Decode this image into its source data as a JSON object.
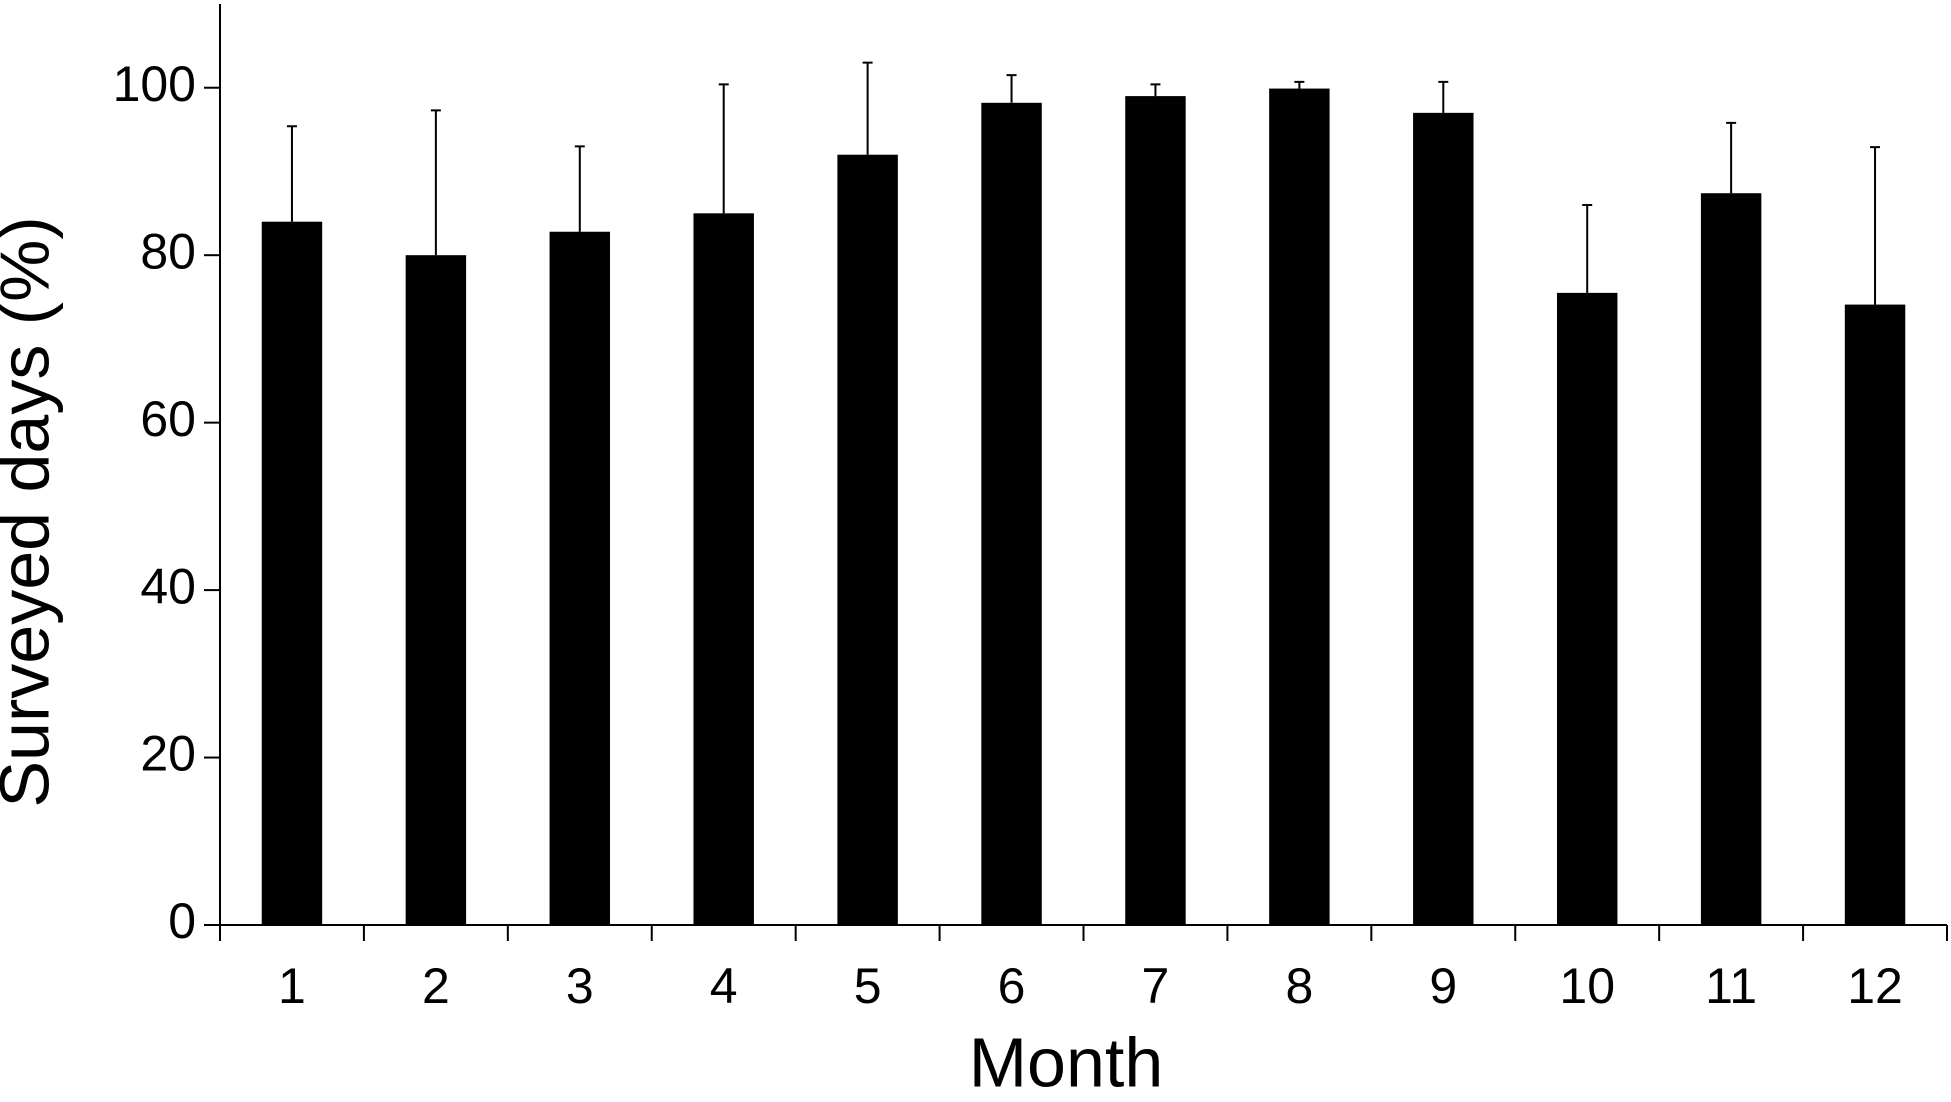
{
  "chart_data": {
    "type": "bar",
    "x_label": "Month",
    "y_label": "Surveyed days (%)",
    "categories": [
      "1",
      "2",
      "3",
      "4",
      "5",
      "6",
      "7",
      "8",
      "9",
      "10",
      "11",
      "12"
    ],
    "values": [
      84,
      80,
      82.8,
      85,
      92,
      98.2,
      99,
      99.9,
      97,
      75.5,
      87.4,
      74.1
    ],
    "errors": [
      11.4,
      17.3,
      10.2,
      15.4,
      11,
      3.3,
      1.4,
      0.8,
      3.7,
      10.5,
      8.4,
      18.8
    ],
    "color": "#000000",
    "ylim": [
      0,
      110
    ],
    "yticks": [
      0,
      20,
      40,
      60,
      80,
      100
    ],
    "grid": false
  }
}
